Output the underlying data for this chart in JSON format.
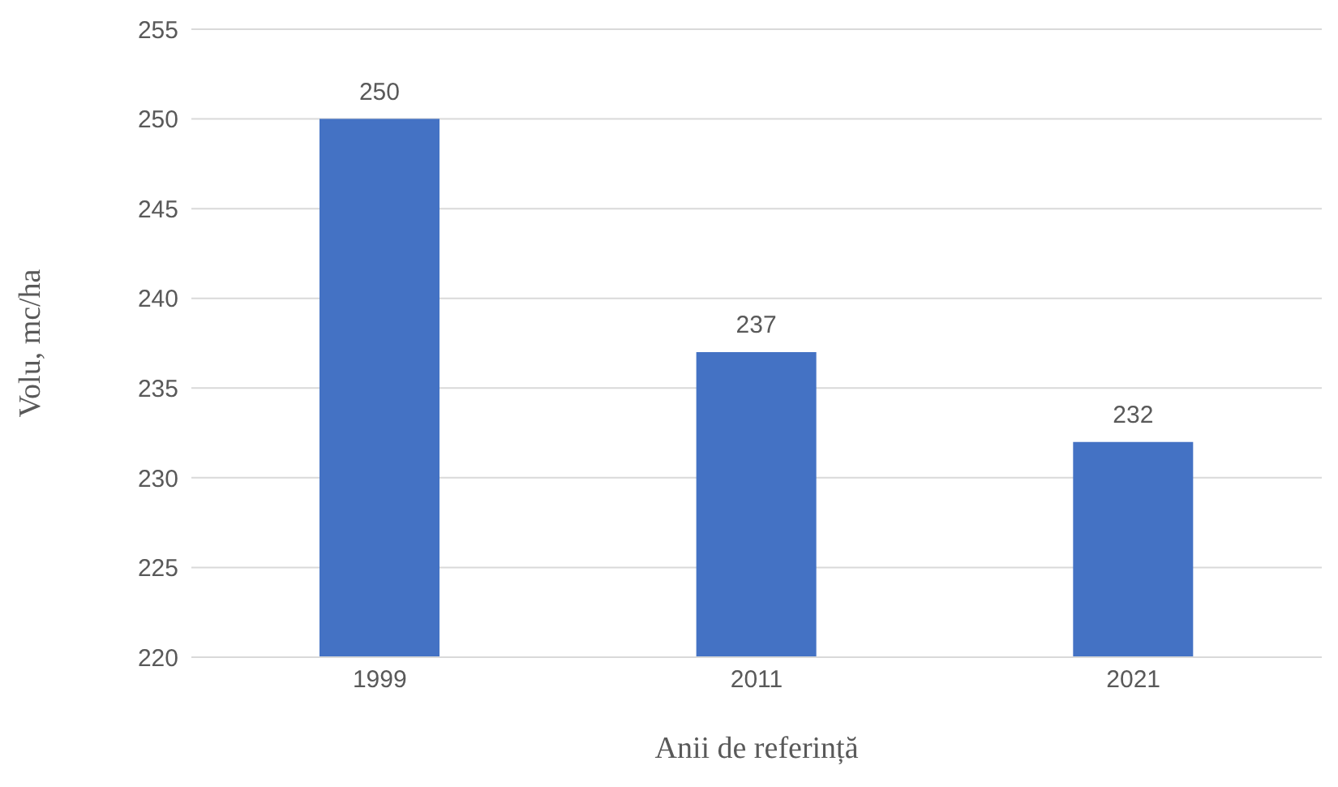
{
  "chart_data": {
    "type": "bar",
    "xlabel": "Anii de referință",
    "ylabel": "Volu, mc/ha",
    "categories": [
      "1999",
      "2011",
      "2021"
    ],
    "values": [
      250,
      237,
      232
    ],
    "color": "#4472c4",
    "ylim": [
      220,
      255
    ],
    "yticks": [
      220,
      225,
      230,
      235,
      240,
      245,
      250,
      255
    ],
    "grid": "y",
    "data_labels": true
  }
}
